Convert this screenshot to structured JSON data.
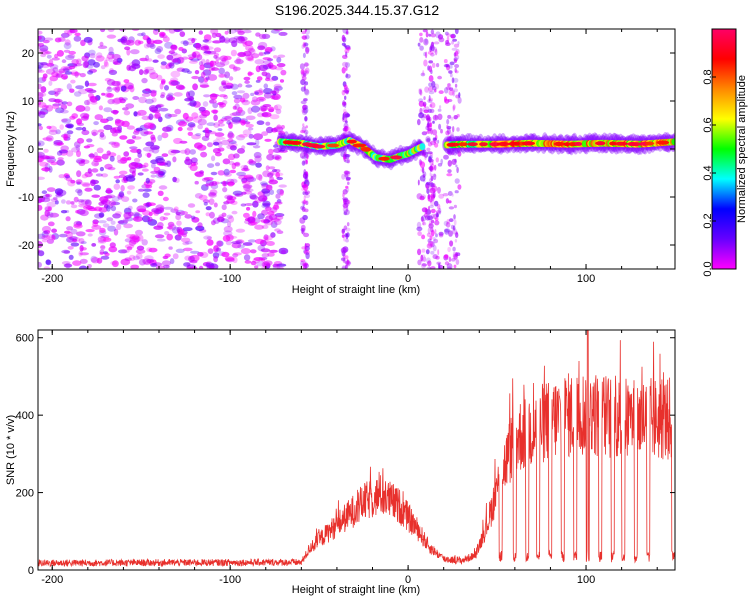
{
  "title": "S196.2025.344.15.37.G12",
  "chart_data": [
    {
      "type": "heatmap",
      "name": "spectrogram",
      "xlabel": "Height of straight line (km)",
      "ylabel": "Frequency (Hz)",
      "xlim": [
        -208,
        150
      ],
      "ylim": [
        -25,
        25
      ],
      "xticks": [
        -200,
        -100,
        0,
        100
      ],
      "yticks": [
        -20,
        -10,
        0,
        10,
        20
      ],
      "xtick_labels": [
        "-200",
        "-100",
        "0",
        "100"
      ],
      "ytick_labels": [
        "-20",
        "-10",
        "0",
        "10",
        "20"
      ],
      "colorbar": {
        "label": "Normalized spectral amplitude",
        "range": [
          0,
          1
        ],
        "ticks": [
          0.0,
          0.2,
          0.4,
          0.6,
          0.8
        ],
        "tick_labels": [
          "0.0",
          "0.2",
          "0.4",
          "0.6",
          "0.8"
        ],
        "colormap": [
          "#ff00ff",
          "#6600ff",
          "#0000ff",
          "#00ffff",
          "#00ff00",
          "#ffff00",
          "#ff8800",
          "#ff0000",
          "#ff0066"
        ]
      },
      "noise_region": [
        -208,
        -70
      ],
      "signal_track": {
        "x": [
          -72,
          -60,
          -50,
          -40,
          -33,
          -25,
          -18,
          -10,
          -5,
          0,
          5,
          8,
          20,
          30,
          50,
          70,
          90,
          110,
          130,
          150
        ],
        "frequency": [
          1.5,
          1.2,
          0.5,
          0.8,
          1.8,
          0.3,
          -1.8,
          -2.2,
          -1.5,
          -1.0,
          0.0,
          0.5,
          0.8,
          1.0,
          1.0,
          1.2,
          1.0,
          1.2,
          1.0,
          1.5
        ]
      },
      "spike_columns": [
        10,
        15,
        25,
        -35,
        -58
      ]
    },
    {
      "type": "line",
      "name": "snr",
      "xlabel": "Height of straight line (km)",
      "ylabel": "SNR (10 * v/v)",
      "xlim": [
        -208,
        150
      ],
      "ylim": [
        0,
        620
      ],
      "xticks": [
        -200,
        -100,
        0,
        100
      ],
      "yticks": [
        0,
        200,
        400,
        600
      ],
      "xtick_labels": [
        "-200",
        "-100",
        "0",
        "100"
      ],
      "ytick_labels": [
        "0",
        "200",
        "400",
        "600"
      ],
      "color": "#e8302c",
      "envelope": {
        "x": [
          -208,
          -60,
          -55,
          -40,
          -25,
          -15,
          -5,
          5,
          12,
          20,
          30,
          38,
          45,
          52,
          60,
          80,
          100,
          120,
          150
        ],
        "y": [
          18,
          20,
          60,
          120,
          180,
          200,
          170,
          110,
          60,
          30,
          25,
          40,
          130,
          250,
          350,
          400,
          420,
          400,
          400
        ]
      },
      "dropouts": [
        52,
        60,
        67,
        73,
        80,
        87,
        94,
        101,
        108,
        115,
        121,
        128,
        135,
        149
      ],
      "peak": {
        "x": 101,
        "y": 620
      }
    }
  ]
}
